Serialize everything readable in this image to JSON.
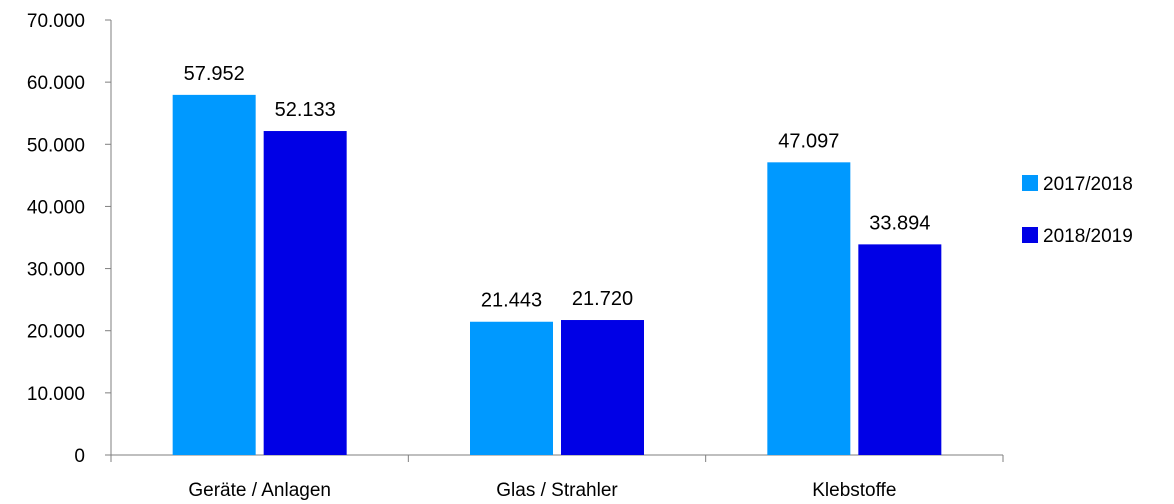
{
  "chart_data": {
    "type": "bar",
    "title": "",
    "xlabel": "",
    "ylabel": "",
    "categories": [
      "Geräte / Anlagen",
      "Glas / Strahler",
      "Klebstoffe"
    ],
    "series": [
      {
        "name": "2017/2018",
        "color": "#0099FF",
        "values": [
          57952,
          21443,
          47097
        ],
        "labels": [
          "57.952",
          "21.443",
          "47.097"
        ]
      },
      {
        "name": "2018/2019",
        "color": "#0000E6",
        "values": [
          52133,
          21720,
          33894
        ],
        "labels": [
          "52.133",
          "21.720",
          "33.894"
        ]
      }
    ],
    "ylim": [
      0,
      70000
    ],
    "yticks": [
      0,
      10000,
      20000,
      30000,
      40000,
      50000,
      60000,
      70000
    ],
    "ytick_labels": [
      "0",
      "10.000",
      "20.000",
      "30.000",
      "40.000",
      "50.000",
      "60.000",
      "70.000"
    ],
    "grid": false,
    "legend_position": "right"
  }
}
